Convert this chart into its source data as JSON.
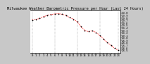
{
  "title": "Milwaukee Weather Barometric Pressure per Hour (Last 24 Hours)",
  "hours": [
    0,
    1,
    2,
    3,
    4,
    5,
    6,
    7,
    8,
    9,
    10,
    11,
    12,
    13,
    14,
    15,
    16,
    17,
    18,
    19,
    20,
    21,
    22,
    23
  ],
  "pressure": [
    29.72,
    29.74,
    29.78,
    29.85,
    29.9,
    29.94,
    29.96,
    29.97,
    29.95,
    29.9,
    29.82,
    29.75,
    29.65,
    29.45,
    29.3,
    29.25,
    29.28,
    29.22,
    29.1,
    28.95,
    28.82,
    28.7,
    28.58,
    28.5
  ],
  "line_color": "#ff0000",
  "marker_color": "#000000",
  "bg_color": "#c8c8c8",
  "plot_bg_color": "#ffffff",
  "grid_color": "#888888",
  "text_color": "#000000",
  "title_fontsize": 3.8,
  "tick_fontsize": 2.8,
  "ylim": [
    28.4,
    30.1
  ],
  "yticks": [
    28.5,
    28.6,
    28.7,
    28.8,
    28.9,
    29.0,
    29.1,
    29.2,
    29.3,
    29.4,
    29.5,
    29.6,
    29.7,
    29.8,
    29.9,
    30.0
  ],
  "ytick_labels": [
    "28.5",
    "28.6",
    "28.7",
    "28.8",
    "28.9",
    "29.0",
    "29.1",
    "29.2",
    "29.3",
    "29.4",
    "29.5",
    "29.6",
    "29.7",
    "29.8",
    "29.9",
    "30.0"
  ],
  "xtick_labels": [
    "0",
    "1",
    "2",
    "3",
    "4",
    "5",
    "6",
    "7",
    "8",
    "9",
    "10",
    "11",
    "12",
    "13",
    "14",
    "15",
    "16",
    "17",
    "18",
    "19",
    "20",
    "21",
    "22",
    "23"
  ],
  "vgrid_positions": [
    0,
    6,
    12,
    18,
    23
  ]
}
